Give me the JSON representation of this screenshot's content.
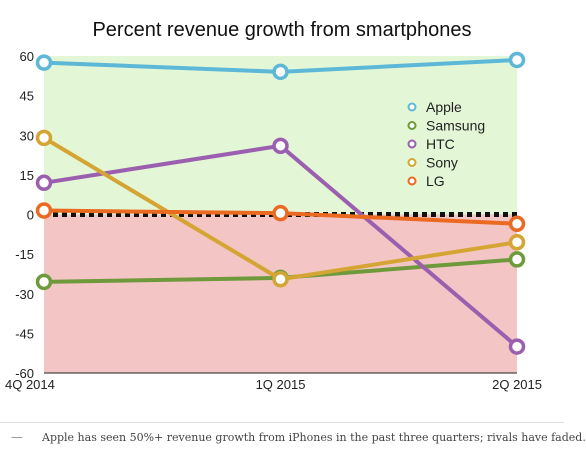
{
  "colors": {
    "positive_bg": "#e3f7d6",
    "negative_bg": "#f3c5c5",
    "zero_line": "#111111",
    "axis": "#222222"
  },
  "chart_data": {
    "type": "line",
    "title": "Percent revenue growth from smartphones",
    "x": [
      "4Q 2014",
      "1Q 2015",
      "2Q 2015"
    ],
    "ylim": [
      -60,
      60
    ],
    "yticks": [
      60,
      45,
      30,
      15,
      0,
      -15,
      -30,
      -45,
      -60
    ],
    "ytick_labels": [
      "60",
      "45",
      "30",
      "15",
      "0",
      "-15",
      "-30",
      "-45",
      "-60"
    ],
    "legend_position": "right",
    "series": [
      {
        "name": "Apple",
        "color": "#5db8d8",
        "values": [
          57.5,
          54,
          58.5
        ]
      },
      {
        "name": "Samsung",
        "color": "#6e9a3c",
        "values": [
          -25.5,
          -24,
          -17
        ]
      },
      {
        "name": "HTC",
        "color": "#9b5fb0",
        "values": [
          12,
          26,
          -50
        ]
      },
      {
        "name": "Sony",
        "color": "#d4a532",
        "values": [
          29,
          -24.5,
          -10.5
        ]
      },
      {
        "name": "LG",
        "color": "#ea6a22",
        "values": [
          1.5,
          0.5,
          -3.5
        ]
      }
    ]
  },
  "caption": {
    "dash": "—",
    "text": "Apple has seen 50%+ revenue growth from iPhones in the past three quarters; rivals have faded."
  }
}
